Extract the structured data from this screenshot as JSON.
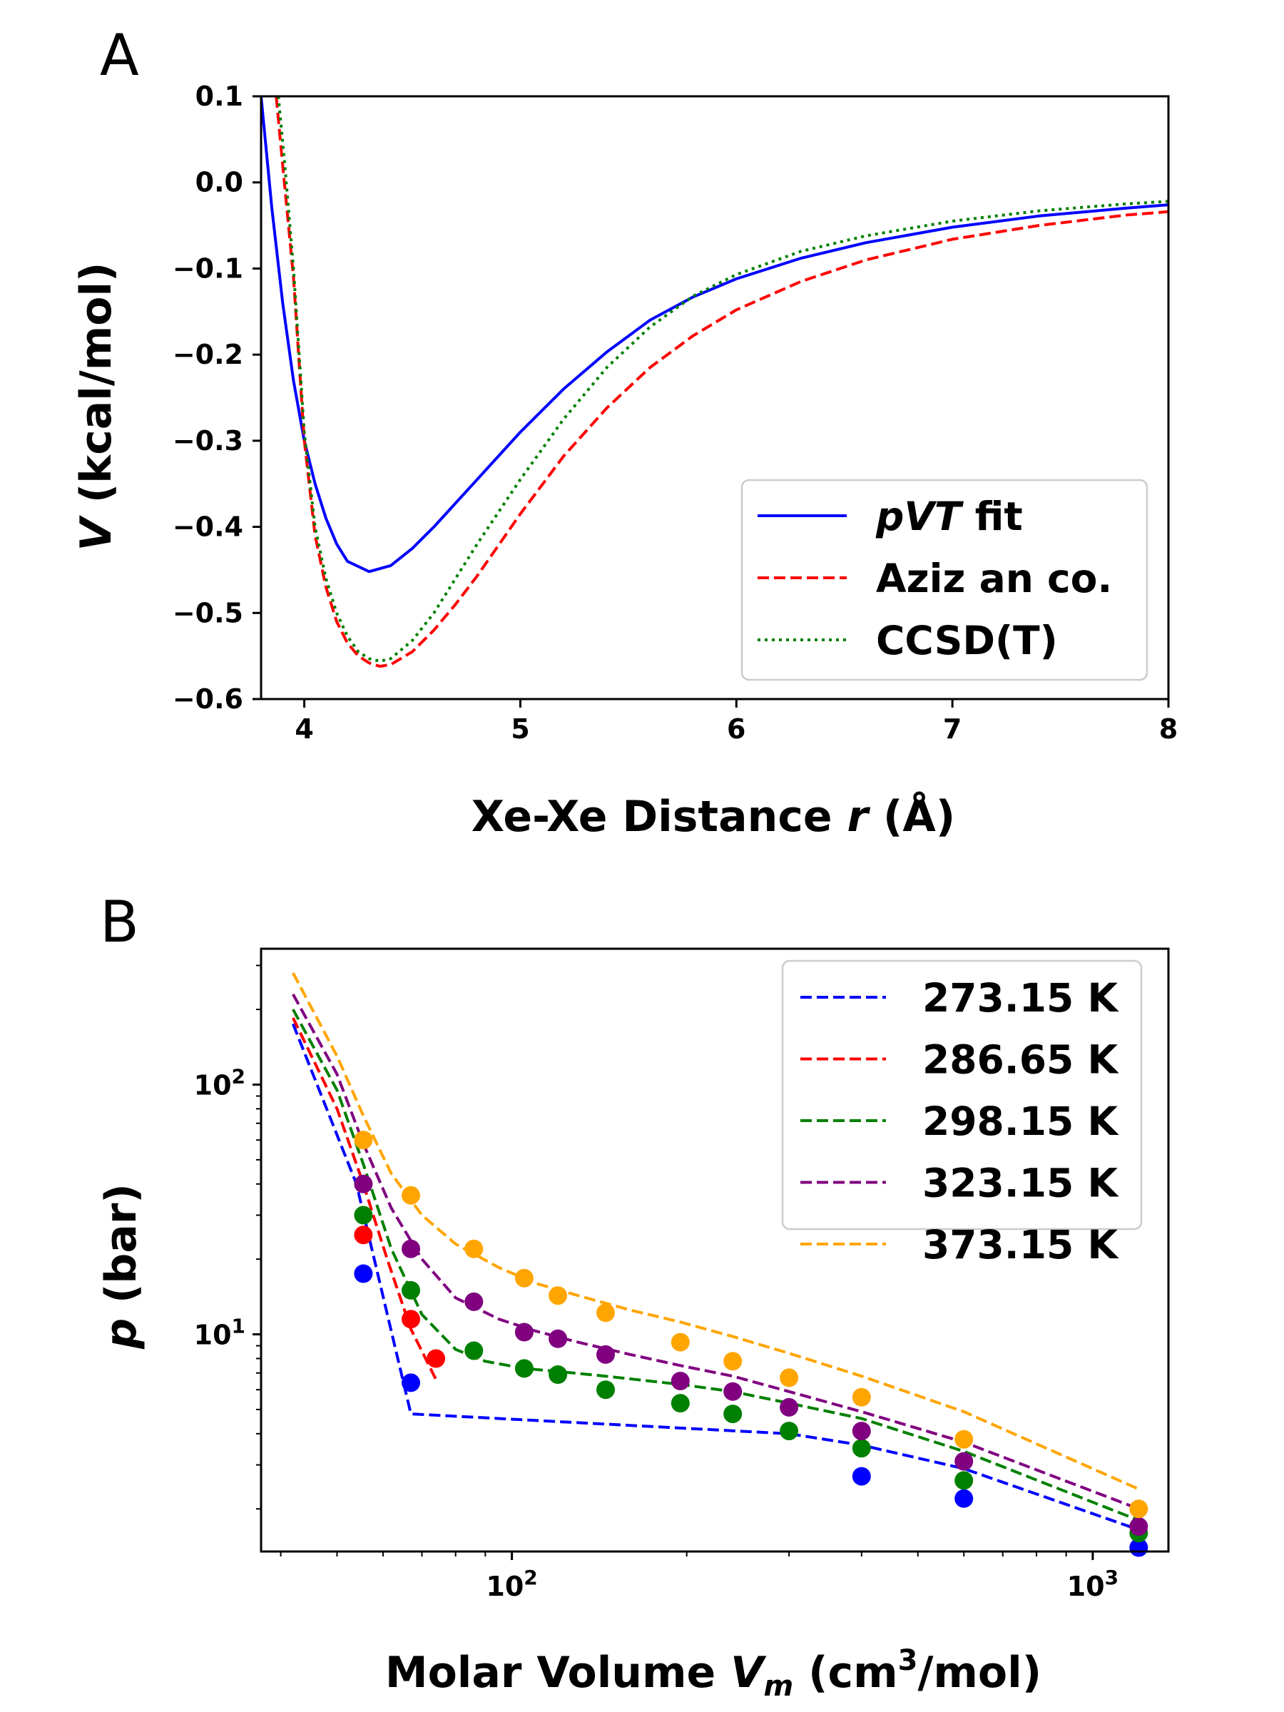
{
  "figure": {
    "panels": [
      "A",
      "B"
    ]
  },
  "chart_data": [
    {
      "panel": "A",
      "type": "line",
      "title": "",
      "xlabel": "Xe-Xe Distance r (Å)",
      "xlabel_parts": [
        "Xe-Xe Distance ",
        "r",
        " (Å)"
      ],
      "ylabel": "V (kcal/mol)",
      "ylabel_parts": [
        "V",
        " (kcal/mol)"
      ],
      "xlim": [
        3.8,
        8.0
      ],
      "ylim": [
        -0.6,
        0.1
      ],
      "xticks": [
        4,
        5,
        6,
        7,
        8
      ],
      "xtick_labels": [
        "4",
        "5",
        "6",
        "7",
        "8"
      ],
      "yticks": [
        0.1,
        0.0,
        -0.1,
        -0.2,
        -0.3,
        -0.4,
        -0.5,
        -0.6
      ],
      "ytick_labels": [
        "0.1",
        "0.0",
        "−0.1",
        "−0.2",
        "−0.3",
        "−0.4",
        "−0.5",
        "−0.6"
      ],
      "legend_position": "lower-right",
      "series": [
        {
          "name": "pVT fit",
          "name_parts": [
            "pVT",
            " fit"
          ],
          "color": "#0000ff",
          "style": "solid",
          "x": [
            3.8,
            3.85,
            3.9,
            3.95,
            4.0,
            4.05,
            4.1,
            4.15,
            4.2,
            4.3,
            4.4,
            4.5,
            4.6,
            4.8,
            5.0,
            5.2,
            5.4,
            5.6,
            5.8,
            6.0,
            6.3,
            6.6,
            7.0,
            7.4,
            7.8,
            8.0
          ],
          "y": [
            0.1,
            -0.03,
            -0.14,
            -0.23,
            -0.3,
            -0.35,
            -0.39,
            -0.42,
            -0.44,
            -0.452,
            -0.445,
            -0.425,
            -0.4,
            -0.345,
            -0.29,
            -0.24,
            -0.197,
            -0.16,
            -0.133,
            -0.112,
            -0.088,
            -0.07,
            -0.052,
            -0.039,
            -0.03,
            -0.026
          ]
        },
        {
          "name": "Aziz an co.",
          "name_parts": [
            "Aziz an co."
          ],
          "color": "#ff0000",
          "style": "dashed",
          "x": [
            3.87,
            3.9,
            3.95,
            4.0,
            4.05,
            4.1,
            4.15,
            4.2,
            4.25,
            4.3,
            4.35,
            4.4,
            4.5,
            4.6,
            4.7,
            4.8,
            5.0,
            5.2,
            5.4,
            5.6,
            5.8,
            6.0,
            6.3,
            6.6,
            7.0,
            7.4,
            7.8,
            8.0
          ],
          "y": [
            0.1,
            0.02,
            -0.11,
            -0.3,
            -0.41,
            -0.47,
            -0.51,
            -0.535,
            -0.55,
            -0.558,
            -0.562,
            -0.56,
            -0.545,
            -0.52,
            -0.49,
            -0.457,
            -0.385,
            -0.318,
            -0.262,
            -0.215,
            -0.178,
            -0.148,
            -0.115,
            -0.09,
            -0.066,
            -0.05,
            -0.038,
            -0.034
          ]
        },
        {
          "name": "CCSD(T)",
          "name_parts": [
            "CCSD(T)"
          ],
          "color": "#008000",
          "style": "dotted",
          "x": [
            3.88,
            3.91,
            3.95,
            4.0,
            4.05,
            4.1,
            4.15,
            4.2,
            4.25,
            4.3,
            4.35,
            4.4,
            4.5,
            4.6,
            4.7,
            4.8,
            5.0,
            5.2,
            5.4,
            5.6,
            5.8,
            6.0,
            6.3,
            6.6,
            7.0,
            7.4,
            7.8,
            8.0
          ],
          "y": [
            0.1,
            0.02,
            -0.1,
            -0.29,
            -0.4,
            -0.46,
            -0.5,
            -0.527,
            -0.545,
            -0.553,
            -0.556,
            -0.553,
            -0.532,
            -0.5,
            -0.46,
            -0.42,
            -0.345,
            -0.275,
            -0.215,
            -0.168,
            -0.132,
            -0.107,
            -0.08,
            -0.062,
            -0.045,
            -0.033,
            -0.025,
            -0.022
          ]
        }
      ]
    },
    {
      "panel": "B",
      "type": "scatter",
      "title": "",
      "xlabel": "Molar Volume Vm (cm3/mol)",
      "xlabel_parts": [
        "Molar Volume ",
        "V",
        "m",
        " (cm",
        "3",
        "/mol)"
      ],
      "ylabel": "p (bar)",
      "ylabel_parts": [
        "p",
        " (bar)"
      ],
      "xscale": "log",
      "yscale": "log",
      "xlim": [
        37,
        1350
      ],
      "ylim": [
        1.35,
        350
      ],
      "xticks": [
        100,
        1000
      ],
      "xtick_labels": [
        [
          "10",
          "2"
        ],
        [
          "10",
          "3"
        ]
      ],
      "yticks": [
        10,
        100
      ],
      "ytick_labels": [
        [
          "10",
          "1"
        ],
        [
          "10",
          "2"
        ]
      ],
      "legend_position": "upper-right",
      "series": [
        {
          "name": "273.15 K",
          "color": "#0000ff",
          "line_x": [
            42,
            54,
            67,
            300,
            400,
            600,
            1200
          ],
          "line_y": [
            175,
            40,
            4.8,
            4.0,
            3.6,
            2.9,
            1.65
          ],
          "points_x": [
            55.5,
            67,
            400,
            600,
            1200
          ],
          "points_y": [
            17.5,
            6.4,
            2.7,
            2.2,
            1.4
          ]
        },
        {
          "name": "286.65 K",
          "color": "#ff0000",
          "line_x": [
            42,
            50,
            55.5,
            61,
            67,
            74
          ],
          "line_y": [
            185,
            80,
            40,
            20,
            10.5,
            6.6
          ],
          "points_x": [
            55.5,
            67,
            74
          ],
          "points_y": [
            25,
            11.5,
            8.0
          ]
        },
        {
          "name": "298.15 K",
          "color": "#008000",
          "line_x": [
            42,
            50,
            55.5,
            62,
            70,
            80,
            90,
            105,
            120,
            145,
            195,
            240,
            300,
            400,
            600,
            1200
          ],
          "line_y": [
            200,
            95,
            48,
            22,
            12,
            8.7,
            7.8,
            7.3,
            7.1,
            6.8,
            6.3,
            5.9,
            5.3,
            4.6,
            3.4,
            1.8
          ],
          "points_x": [
            55.5,
            67,
            86,
            105,
            120,
            145,
            195,
            240,
            300,
            400,
            600,
            1200
          ],
          "points_y": [
            30,
            15,
            8.6,
            7.3,
            6.9,
            6.0,
            5.3,
            4.8,
            4.1,
            3.5,
            2.6,
            1.6
          ]
        },
        {
          "name": "323.15 K",
          "color": "#800080",
          "line_x": [
            42,
            50,
            55.5,
            62,
            70,
            80,
            95,
            110,
            130,
            160,
            195,
            240,
            300,
            400,
            600,
            1200
          ],
          "line_y": [
            230,
            110,
            58,
            32,
            20,
            14,
            11.5,
            10.3,
            9.3,
            8.3,
            7.5,
            6.8,
            5.9,
            4.9,
            3.7,
            2.0
          ],
          "points_x": [
            55.5,
            67,
            86,
            105,
            120,
            145,
            195,
            240,
            300,
            400,
            600,
            1200
          ],
          "points_y": [
            40,
            22,
            13.5,
            10.2,
            9.6,
            8.3,
            6.5,
            5.9,
            5.1,
            4.1,
            3.1,
            1.7
          ]
        },
        {
          "name": "373.15 K",
          "color": "#ffa500",
          "line_x": [
            42,
            50,
            55.5,
            62,
            70,
            80,
            95,
            110,
            130,
            160,
            195,
            240,
            300,
            400,
            600,
            1200
          ],
          "line_y": [
            280,
            130,
            75,
            44,
            30,
            23,
            18.5,
            16,
            14.3,
            12.5,
            11.2,
            9.8,
            8.4,
            6.8,
            4.9,
            2.4
          ],
          "points_x": [
            55.5,
            67,
            86,
            105,
            120,
            145,
            195,
            240,
            300,
            400,
            600,
            1200
          ],
          "points_y": [
            60,
            36,
            22,
            16.8,
            14.3,
            12.2,
            9.3,
            7.8,
            6.7,
            5.6,
            3.8,
            2.0
          ]
        }
      ]
    }
  ]
}
